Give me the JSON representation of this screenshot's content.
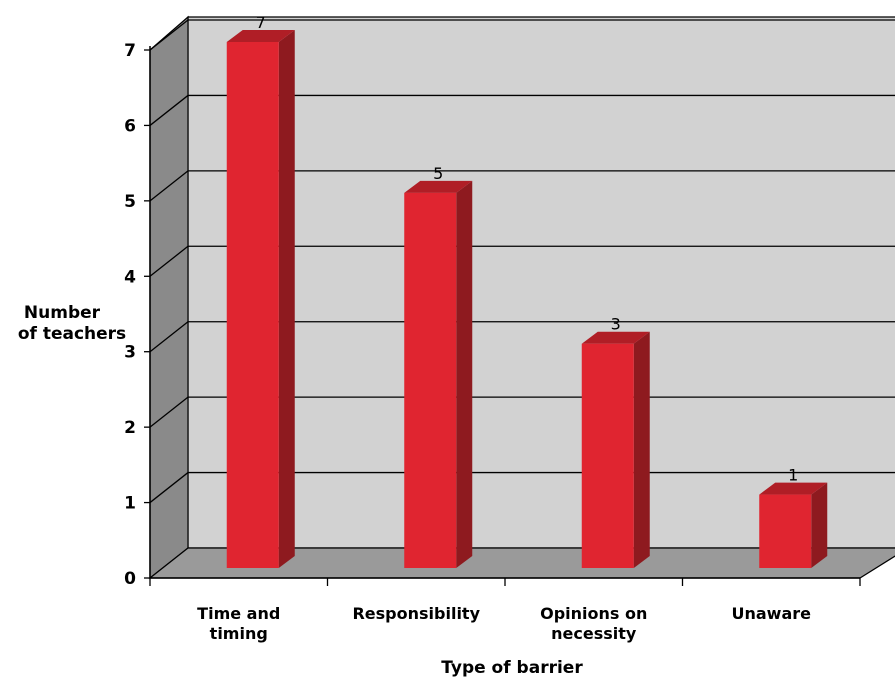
{
  "chart_data": {
    "type": "bar",
    "style": "3d-column",
    "title": "",
    "xlabel": "Type of barrier",
    "ylabel": [
      "Number",
      "of teachers"
    ],
    "categories": [
      [
        "Time and",
        "timing"
      ],
      [
        "Responsibility"
      ],
      [
        "Opinions on",
        "necessity"
      ],
      [
        "Unaware"
      ]
    ],
    "values": [
      7,
      5,
      3,
      1
    ],
    "ylim": [
      0,
      7
    ],
    "yticks": [
      "0",
      "1",
      "2",
      "3",
      "4",
      "5",
      "6",
      "7"
    ],
    "grid": true,
    "legend": "none",
    "colors": {
      "bar_front": "#e02530",
      "bar_side": "#8e1a1f",
      "bar_top": "#b01e26",
      "back_wall": "#d2d2d2",
      "side_wall": "#8a8a8a",
      "floor": "#9a9a9a"
    }
  }
}
